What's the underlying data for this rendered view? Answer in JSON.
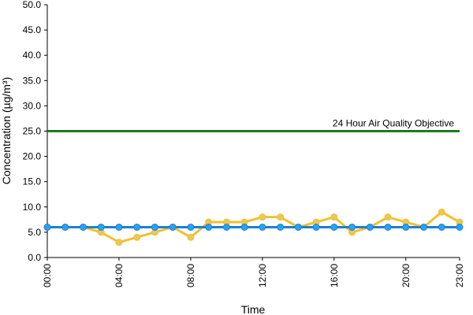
{
  "chart_data": {
    "type": "line",
    "xlabel": "Time",
    "ylabel": "Concentration (µg/m³)",
    "ylim": [
      0,
      50
    ],
    "yticks": [
      0,
      5,
      10,
      15,
      20,
      25,
      30,
      35,
      40,
      45,
      50
    ],
    "ytick_labels": [
      "0.0",
      "5.0",
      "10.0",
      "15.0",
      "20.0",
      "25.0",
      "30.0",
      "35.0",
      "40.0",
      "45.0",
      "50.0"
    ],
    "x_hours": [
      0,
      1,
      2,
      3,
      4,
      5,
      6,
      7,
      8,
      9,
      10,
      11,
      12,
      13,
      14,
      15,
      16,
      17,
      18,
      19,
      20,
      21,
      22,
      23
    ],
    "xtick_hours": [
      0,
      4,
      8,
      12,
      16,
      20,
      23
    ],
    "xtick_labels": [
      "00:00",
      "04:00",
      "08:00",
      "12:00",
      "16:00",
      "20:00",
      "23:00"
    ],
    "grid": false,
    "reference_line": {
      "label": "24 Hour Air Quality Objective",
      "value": 25,
      "color": "#1f7a1f"
    },
    "series": [
      {
        "color": "#f2c12e",
        "marker_color": "#e8c85a",
        "values": [
          6,
          6,
          6,
          5,
          3,
          4,
          5,
          6,
          4,
          7,
          7,
          7,
          8,
          8,
          6,
          7,
          8,
          5,
          6,
          8,
          7,
          6,
          9,
          7
        ]
      },
      {
        "color": "#1a7fd6",
        "marker_color": "#29a3f0",
        "values": [
          6,
          6,
          6,
          6,
          6,
          6,
          6,
          6,
          6,
          6,
          6,
          6,
          6,
          6,
          6,
          6,
          6,
          6,
          6,
          6,
          6,
          6,
          6,
          6
        ]
      }
    ]
  }
}
